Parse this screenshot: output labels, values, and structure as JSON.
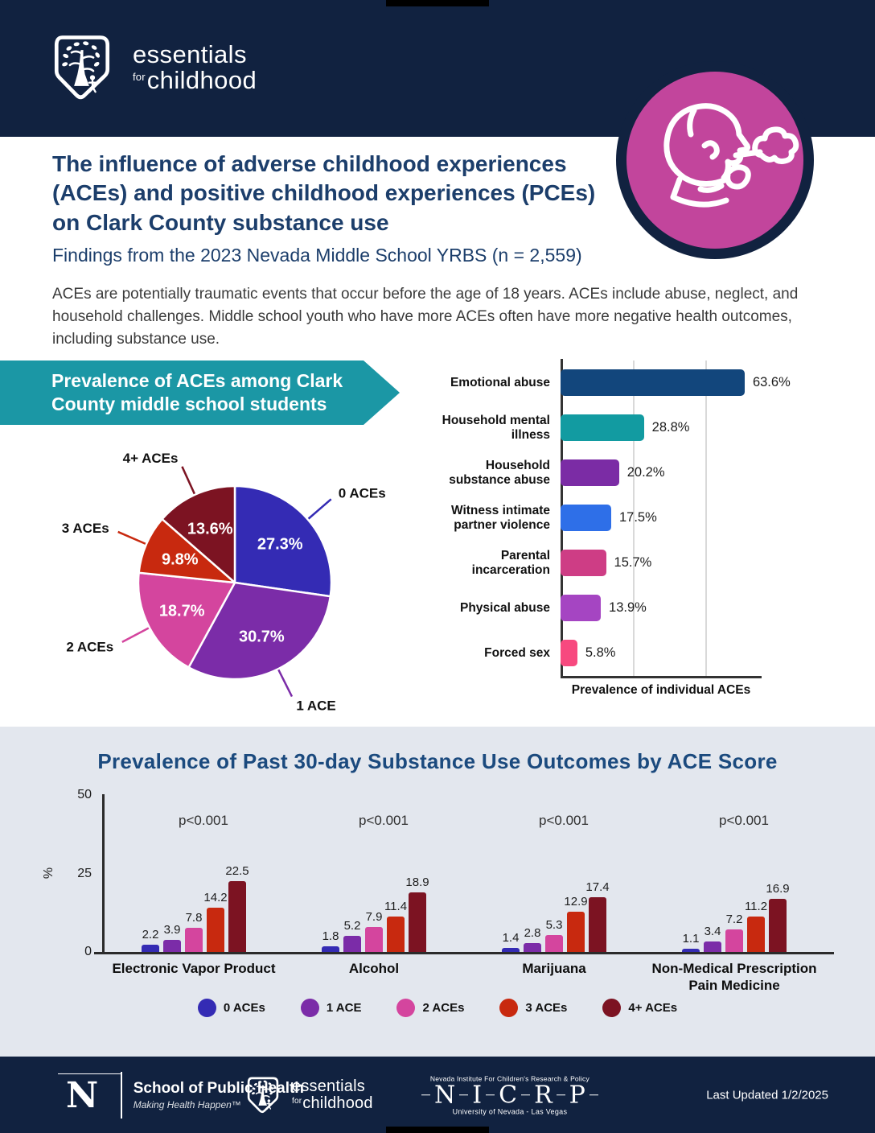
{
  "brand": {
    "word1": "essentials",
    "word_for": "for",
    "word2": "childhood"
  },
  "header": {
    "title": "The influence of adverse childhood experiences (ACEs) and positive childhood experiences (PCEs) on Clark County substance use",
    "subtitle": "Findings from the 2023 Nevada Middle School YRBS (n = 2,559)",
    "intro": "ACEs are potentially traumatic events that occur before the age of 18 years. ACEs include abuse, neglect, and household challenges. Middle school youth who have more ACEs often have more negative health outcomes, including substance use.",
    "icon": "smoking-child-icon",
    "navy": "#112240",
    "magenta": "#c2459c",
    "teal": "#1b97a5"
  },
  "section1": {
    "banner": "Prevalence of ACEs among Clark County middle school students"
  },
  "chart_data": [
    {
      "id": "ace-prevalence-pie",
      "type": "pie",
      "title": "Prevalence of ACEs among Clark County middle school students",
      "labels": [
        "0 ACEs",
        "1 ACE",
        "2 ACEs",
        "3 ACEs",
        "4+ ACEs"
      ],
      "values": [
        27.3,
        30.7,
        18.7,
        9.8,
        13.6
      ],
      "value_labels": [
        "27.3%",
        "30.7%",
        "18.7%",
        "9.8%",
        "13.6%"
      ],
      "colors": [
        "#342bb4",
        "#7b2ca8",
        "#d4459e",
        "#c8290f",
        "#7c1322"
      ],
      "start_angle": "12 o'clock, clockwise"
    },
    {
      "id": "individual-aces-bar",
      "type": "bar",
      "orientation": "horizontal",
      "categories": [
        "Emotional abuse",
        "Household mental illness",
        "Household substance abuse",
        "Witness intimate partner violence",
        "Parental incarceration",
        "Physical abuse",
        "Forced sex"
      ],
      "values": [
        63.6,
        28.8,
        20.2,
        17.5,
        15.7,
        13.9,
        5.8
      ],
      "value_labels": [
        "63.6%",
        "28.8%",
        "20.2%",
        "17.5%",
        "15.7%",
        "13.9%",
        "5.8%"
      ],
      "colors": [
        "#12467c",
        "#129ba1",
        "#7b2ca5",
        "#2e6fe8",
        "#ce3d85",
        "#a545c2",
        "#f7497f"
      ],
      "xlabel": "Prevalence of individual ACEs",
      "xlim": [
        0,
        67
      ],
      "gridlines": [
        25,
        50
      ]
    },
    {
      "id": "substance-use-by-ace-score",
      "type": "bar",
      "title": "Prevalence of Past 30-day Substance Use Outcomes by ACE Score",
      "categories": [
        "Electronic Vapor Product",
        "Alcohol",
        "Marijuana",
        "Non-Medical Prescription Pain Medicine"
      ],
      "series": [
        {
          "name": "0 ACEs",
          "color": "#342bb4",
          "values": [
            2.2,
            1.8,
            1.4,
            1.1
          ]
        },
        {
          "name": "1 ACE",
          "color": "#7b2ca8",
          "values": [
            3.9,
            5.2,
            2.8,
            3.4
          ]
        },
        {
          "name": "2 ACEs",
          "color": "#d4459e",
          "values": [
            7.8,
            7.9,
            5.3,
            7.2
          ]
        },
        {
          "name": "3 ACEs",
          "color": "#c8290f",
          "values": [
            14.2,
            11.4,
            12.9,
            11.2
          ]
        },
        {
          "name": "4+ ACEs",
          "color": "#7c1322",
          "values": [
            22.5,
            18.9,
            17.4,
            16.9
          ]
        }
      ],
      "p_values": [
        "p<0.001",
        "p<0.001",
        "p<0.001",
        "p<0.001"
      ],
      "ylabel": "%",
      "yticks": [
        0,
        25,
        50
      ],
      "ylim": [
        0,
        50
      ],
      "legend_position": "bottom"
    }
  ],
  "footer": {
    "unr": {
      "letter": "N",
      "title": "School of Public Health",
      "tagline": "Making Health Happen™"
    },
    "nicrp": {
      "top": "Nevada Institute For Children's Research & Policy",
      "acronym": "NICRP",
      "bottom": "University of Nevada - Las Vegas"
    },
    "last_updated": "Last Updated 1/2/2025"
  }
}
